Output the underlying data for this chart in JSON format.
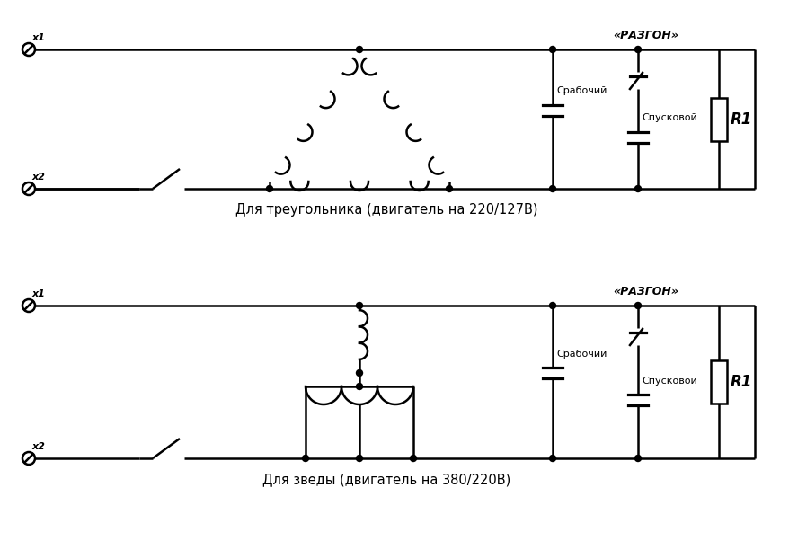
{
  "bg_color": "#ffffff",
  "line_color": "#000000",
  "line_width": 1.8,
  "fig_width": 8.79,
  "fig_height": 6.02,
  "label_top1": "Для треугольника (двигатель на 220/127В)",
  "label_top2": "Для зведы (двигатель на 380/220В)",
  "text_razgon": "«РАЗГОН»",
  "text_r1": "R1",
  "text_srab": "Срабочий",
  "text_spusk": "Спусковой",
  "text_x1": "х1",
  "text_x2": "х2"
}
